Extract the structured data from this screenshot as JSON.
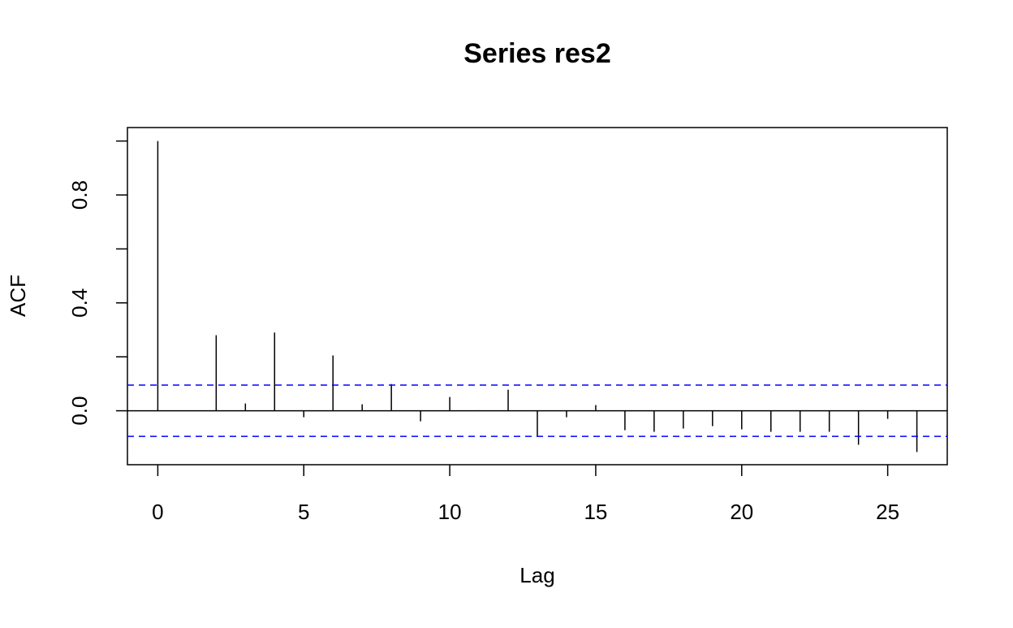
{
  "chart_data": {
    "type": "stem",
    "title": "Series  res2",
    "x_label": "Lag",
    "y_label": "ACF",
    "x": [
      0,
      1,
      2,
      3,
      4,
      5,
      6,
      7,
      8,
      9,
      10,
      11,
      12,
      13,
      14,
      15,
      16,
      17,
      18,
      19,
      20,
      21,
      22,
      23,
      24,
      25,
      26
    ],
    "values": [
      1.0,
      0.001,
      0.28,
      0.027,
      0.29,
      -0.024,
      0.205,
      0.024,
      0.099,
      -0.039,
      0.051,
      0.002,
      0.078,
      -0.093,
      -0.024,
      0.021,
      -0.072,
      -0.078,
      -0.066,
      -0.057,
      -0.069,
      -0.078,
      -0.078,
      -0.078,
      -0.126,
      -0.03,
      -0.153
    ],
    "color": "#000000",
    "confidence_lines": {
      "values": [
        0.095,
        -0.095
      ],
      "color": "#0000ff",
      "dashed": true
    },
    "xlim": [
      -1.04,
      27.04
    ],
    "xticks": [
      0,
      5,
      10,
      15,
      20,
      25
    ],
    "ylim": [
      -0.2,
      1.05
    ],
    "yticks": [
      {
        "value": 0,
        "label": "0.0"
      },
      {
        "value": 0.2,
        "label": null
      },
      0.4,
      {
        "value": 0.6,
        "label": null
      },
      0.8,
      {
        "value": 1.0,
        "label": null
      }
    ]
  }
}
